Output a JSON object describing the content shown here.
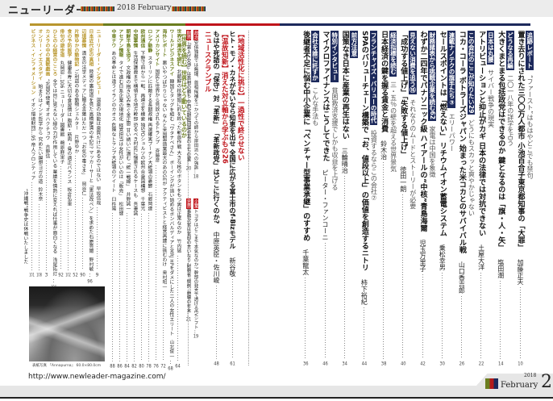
{
  "header": {
    "magazine_title": "ニューリーダー",
    "issue": "2018 February"
  },
  "colors": {
    "navy": "#1d2a5c",
    "red": "#c0141b",
    "gold": "#b8962e",
    "olive": "#6b7d1f"
  },
  "right_items": [
    {
      "tag": "追跡レポート",
      "subtitle": "“ファースト”はもはやどこでも禁句",
      "title": "置き去りにされた三〇〇万人都市 小池百合子東京都知事の「大罪」",
      "author": "加藤正夫",
      "page": "10"
    },
    {
      "tag": "どうなる再編",
      "subtitle": "二〇一八年の詳学を占う",
      "title": "大きくまとまる包括政党はできるのか 鍵となるのは「旗・人・矢」",
      "author": "塩田潮",
      "page": "14"
    },
    {
      "tag": "日本は丸腰",
      "subtitle": "サイバー戦争の現実",
      "title": "アトリビューションと抑止がカギ 日本の法律では対抗できない",
      "author": "土屋大洋",
      "page": "22"
    },
    {
      "tag": "この会社のここが知りたい29",
      "subtitle": "どうにもスカッと爽やかじゃない",
      "title": "コカ・コーラ ボトラーズジャパン 始まった米コカとのサバイバル戦",
      "author": "山口香吉郎",
      "page": "26"
    },
    {
      "tag": "連載ナノテクの旗手たち③",
      "subtitle": "エリーパワー",
      "title": "セールスポイントは「燃えない」 リチウムイオン蓄電システム",
      "author": "乗松幸男",
      "page": "30"
    },
    {
      "tag": "財務諸表から挑戦企業を読む62",
      "subtitle": "家電は中国を象徴",
      "title": "わずか二四年でパナソニック級 ハイアールの“中核”青島海爾",
      "author": "児玉万里子",
      "page": "42"
    },
    {
      "tag": "見えない消費を追う⑯",
      "subtitle": "それなりのムードとストーリーが必要",
      "title": "「成功する値上げ」「失敗する値上げ」",
      "author": "徳田一朗",
      "page": "40"
    },
    {
      "tag": "経済指標を読む",
      "subtitle": "三・五％の壁を超える世界景気",
      "title": "日本経済の鍵を握る賃金と消費",
      "author": "鈴木治",
      "page": "38"
    },
    {
      "tag": "フランチャイズ・バリューの時代",
      "subtitle": "投資するならこの会社⑦",
      "title": "SPAのバリューチェーン構築で「お、値段以上」の価値を創造するニトリ",
      "author": "柿下裕紀",
      "page": "44"
    },
    {
      "tag": "前方注意",
      "subtitle": "",
      "title": "国策なき日本に産業の再生はない",
      "author": "三輪晴治",
      "page": "34"
    },
    {
      "tag": "特別インタビュー",
      "subtitle": "貧困救済支援でしかも収益を上げる",
      "title": "マイクロファイナンスはこうしてできた",
      "author": "ピーター・ファンコーニ",
      "page": "46"
    },
    {
      "tag": "会社を誰に託すか",
      "subtitle": "こんな手法も",
      "title": "後継者不足に悩む中小企業に「ベンチャー型事業承継」のすすめ",
      "author": "千葉龍太",
      "page": "36"
    }
  ],
  "middle": {
    "feature1": {
      "heading": "【地域活性化に挑む】一過性で終らせない",
      "title": "ヒト・モノ・カネがないなら知恵を出せ 全国に広がる富士市のf-Bizモデル",
      "author": "新谷敬",
      "page": "61"
    },
    "feature2": {
      "heading": "【温故知新】消えた対立軸から学ぶもの26",
      "title": "もはや死語の「保守」対「革新」 「革新政党」はどこに行くのか?",
      "author": "中原英臣・佐川峻",
      "page": "48"
    },
    "news": {
      "heading": "ニュースクランブル",
      "items": [
        {
          "category": "政治",
          "text": "安倍独裁では無理、首相候補を!! かつての師から岸田派への強訴…",
          "page": "18"
        },
        {
          "category": "企業",
          "text": "トヨタはどこまで本気なのか? 幹部の発言で透けるEVシフト…",
          "page": "19"
        },
        {
          "category": "財界",
          "text": "「賃上げ交渉」は首相の勝ち 中西次期経団連会長の立ち位置…",
          "page": "20"
        },
        {
          "category": "官界",
          "text": "事務次官は官邸の言いなり 財務省“慣例”崩壊の年末…",
          "page": "21"
        }
      ]
    }
  },
  "left": {
    "world_heading": "【世界を読む】世界はどう動いているのか",
    "world": [
      {
        "label": "世界の潮流を読む",
        "text": "北朝鮮の核施設に的を絞った斬首作戦 大きな核のボタンをもつ男は正常なのか",
        "author": "竹内猛",
        "page": "64"
      },
      {
        "label": "ワールドビジネスアイ",
        "text": "韓国とタッグを組む「ワタナベさん」 ボーイングが追い詰めるボンバルディアとMRJ HPをダメにした二人の女性エリート",
        "author": "山北俊一",
        "page": "68"
      },
      {
        "label": "海外レポート",
        "text": "悪いやつばかりじゃない なんと米国製造業最大のあのGEが アクティビストと経営再建に挑むわけ",
        "author": "奥村昭一",
        "page": "72"
      },
      {
        "label": "アメリカンサイト",
        "text": "国民と世界から見放されるトランプ",
        "author": "斉藤彦",
        "page": "76"
      },
      {
        "label": "ロシア動静",
        "text": "スターリンに匹敵する長期政権 再選確実プーチン大統領の憂鬱",
        "author": "石郷岡建",
        "page": "78"
      },
      {
        "label": "欧州通信",
        "text": "下野寸前から一転、再連立を模索 独SPDシュルツの欧州合衆国構想",
        "author": "千葉光",
        "page": "80"
      },
      {
        "label": "中国事情",
        "text": "生活保護費まで横領する地方幹部 恐るべき村民に憎悪されるケースも",
        "author": "吾妻誠",
        "page": "82"
      },
      {
        "label": "朝鮮半島を追う",
        "text": "文政権の抱き込み急ぐ金正恩 甘い誘いに潜む「統一戦線」",
        "author": "井野誠一",
        "page": "84"
      },
      {
        "label": "アセアン情報",
        "text": "タイで進む日系企業の現地化 経営担当は女性がいいのは「販売」",
        "author": "松田健",
        "page": "86"
      },
      {
        "label": "中東ナウ",
        "text": "あの革命とは違うイランのカオス 危険なトランプ大統領のツイート",
        "author": "臼杵陽",
        "page": "88"
      }
    ],
    "columns": [
      {
        "label": "ニューリーダー・インタビュー",
        "text": "温泉の効能は泉質だけにあるのではない",
        "author": "早坂信哉",
        "page": "9"
      },
      {
        "label": "日本近代史の真相",
        "text": "陸奥の裏街道を見た高橋是清の手記!? マッカーサーと「憲法改ペン」を求めた石原莞爾",
        "author": "野村敏",
        "page": "96"
      },
      {
        "label": "辺境慕情",
        "text": "満支の法学メディアに贈る言葉はただ一つ「お気の毒さま」",
        "author": "岡谷仁",
        "page": "90"
      },
      {
        "label": "片野ゆかの動物記",
        "text": "ご利益のある動物シェルター",
        "author": "片野ゆか",
        "page": "52"
      },
      {
        "label": "食の予防医学",
        "text": "健康長寿に大切な食習慣は 脂肪・筋肉・骨の適正バランス",
        "author": "板倉弘重",
        "page": "102"
      },
      {
        "label": "俳句の遊歩道",
        "text": "丸岡忍…106 ニューリーダー図書館",
        "author": "鵜原麻里子",
        "page": "92"
      },
      {
        "label": "ひとの心経営のこころ",
        "text": "全ては目に見えない縁の力が作用している 業績を情熱に変えれば仕事が面白くなる",
        "author": "浅尾拓灯",
        "page": "104"
      },
      {
        "label": "カメラの中の異獣戯画",
        "text": "“北国の使者”オオハクチョウ",
        "author": "吉野信",
        "page": "3"
      },
      {
        "label": "オンリー・イエスタデイ",
        "text": "始まりはインド哲学から 究めたい瞑想ヨガの道",
        "author": "鈴木奈",
        "page": "108"
      },
      {
        "label": "ビジネス・インフォメーション",
        "text": "イオン環境財団…95 帝人フロンティア",
        "author": "",
        "page": "101"
      }
    ],
    "extra_line": "“沖縄戦”戦争史は休戦いたしました"
  },
  "photo": {
    "caption": "表紙写真 『Annapurna』 60.0×80.0cm"
  },
  "footer": {
    "url": "http://www.newleader-magazine.com/"
  },
  "page_badge": {
    "year": "2018",
    "month": "February",
    "number": "2"
  }
}
